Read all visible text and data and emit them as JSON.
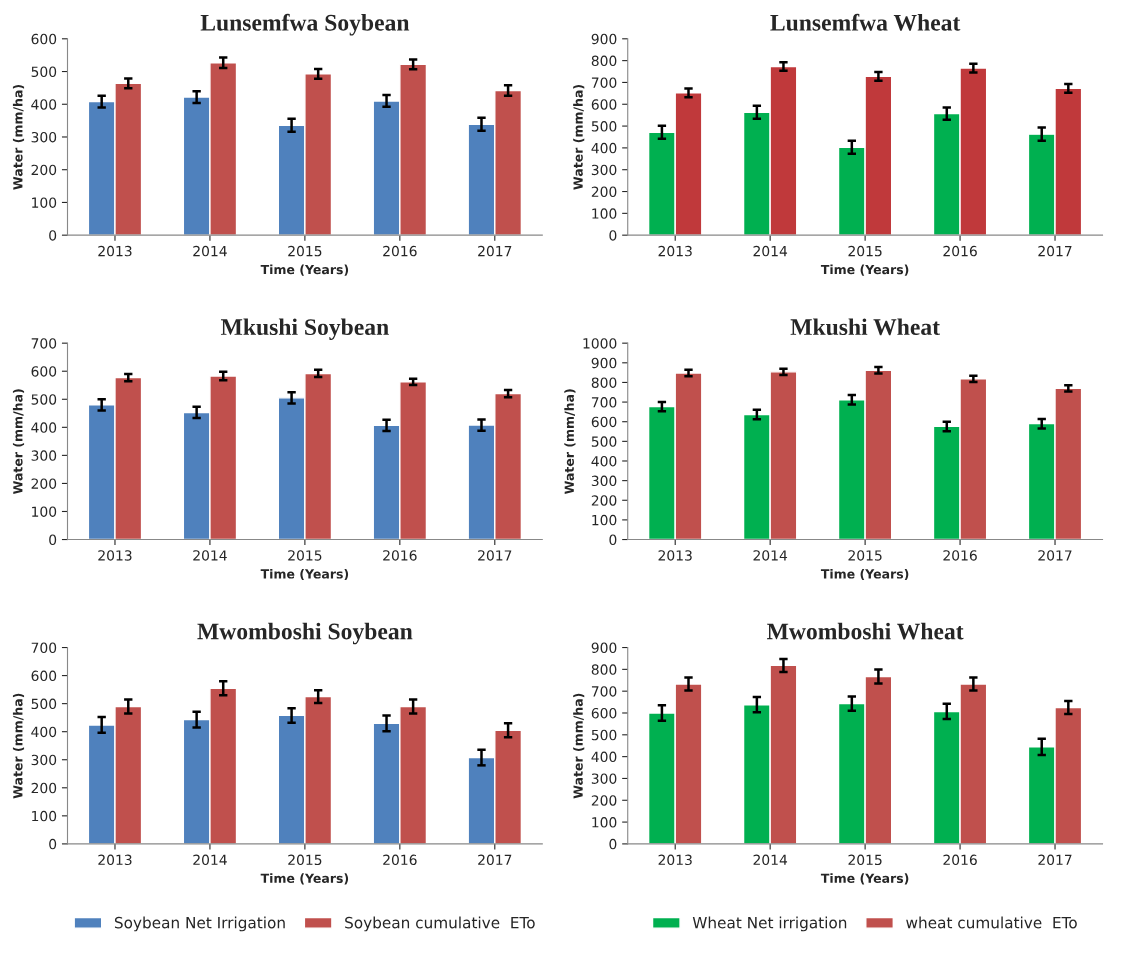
{
  "chart_data": [
    {
      "type": "bar",
      "title": "Lunsemfwa Soybean",
      "xlabel": "Time (Years)",
      "ylabel": "Water (mm/ha)",
      "categories": [
        "2013",
        "2014",
        "2015",
        "2016",
        "2017"
      ],
      "ylim": [
        0,
        600
      ],
      "yticks": [
        0,
        100,
        200,
        300,
        400,
        500,
        600
      ],
      "grid": false,
      "legend": false,
      "series": [
        {
          "color": "#4f81bd",
          "values": [
            408,
            422,
            336,
            410,
            339
          ],
          "errors": [
            18,
            18,
            20,
            18,
            20
          ]
        },
        {
          "color": "#c0504d",
          "values": [
            464,
            527,
            493,
            522,
            442
          ],
          "errors": [
            15,
            16,
            15,
            15,
            16
          ]
        }
      ]
    },
    {
      "type": "bar",
      "title": "Lunsemfwa Wheat",
      "xlabel": "Time (Years)",
      "ylabel": "Water (mm/ha)",
      "categories": [
        "2013",
        "2014",
        "2015",
        "2016",
        "2017"
      ],
      "ylim": [
        0,
        900
      ],
      "yticks": [
        0,
        100,
        200,
        300,
        400,
        500,
        600,
        700,
        800,
        900
      ],
      "grid": false,
      "legend": false,
      "series": [
        {
          "color": "#00b050",
          "values": [
            472,
            563,
            403,
            557,
            463
          ],
          "errors": [
            30,
            30,
            30,
            28,
            30
          ]
        },
        {
          "color": "#c0393b",
          "values": [
            652,
            773,
            728,
            766,
            673
          ],
          "errors": [
            20,
            20,
            20,
            20,
            20
          ]
        }
      ]
    },
    {
      "type": "bar",
      "title": "Mkushi Soybean",
      "xlabel": "Time (Years)",
      "ylabel": "Water (mm/ha)",
      "categories": [
        "2013",
        "2014",
        "2015",
        "2016",
        "2017"
      ],
      "ylim": [
        0,
        700
      ],
      "yticks": [
        0,
        100,
        200,
        300,
        400,
        500,
        600,
        700
      ],
      "grid": false,
      "legend": false,
      "series": [
        {
          "color": "#4f81bd",
          "values": [
            480,
            453,
            505,
            407,
            408
          ],
          "errors": [
            20,
            20,
            20,
            20,
            20
          ]
        },
        {
          "color": "#c0504d",
          "values": [
            577,
            583,
            592,
            562,
            520
          ],
          "errors": [
            13,
            15,
            13,
            11,
            13
          ]
        }
      ]
    },
    {
      "type": "bar",
      "title": "Mkushi Wheat",
      "xlabel": "Time (Years)",
      "ylabel": "Water (mm/ha)",
      "categories": [
        "2013",
        "2014",
        "2015",
        "2016",
        "2017"
      ],
      "ylim": [
        0,
        1000
      ],
      "yticks": [
        0,
        100,
        200,
        300,
        400,
        500,
        600,
        700,
        800,
        900,
        1000
      ],
      "grid": false,
      "legend": false,
      "series": [
        {
          "color": "#00b050",
          "values": [
            677,
            637,
            712,
            576,
            590
          ],
          "errors": [
            24,
            24,
            24,
            24,
            24
          ]
        },
        {
          "color": "#c0504d",
          "values": [
            848,
            854,
            862,
            818,
            770
          ],
          "errors": [
            16,
            16,
            16,
            16,
            16
          ]
        }
      ]
    },
    {
      "type": "bar",
      "title": "Mwomboshi Soybean",
      "xlabel": "Time (Years)",
      "ylabel": "Water (mm/ha)",
      "categories": [
        "2013",
        "2014",
        "2015",
        "2016",
        "2017"
      ],
      "ylim": [
        0,
        700
      ],
      "yticks": [
        0,
        100,
        200,
        300,
        400,
        500,
        600,
        700
      ],
      "grid": false,
      "legend": "bottom",
      "series": [
        {
          "name": "Soybean Net Irrigation",
          "color": "#4f81bd",
          "values": [
            424,
            443,
            458,
            430,
            308
          ],
          "errors": [
            28,
            28,
            26,
            28,
            28
          ]
        },
        {
          "name": "Soybean cumulative  ETo",
          "color": "#c0504d",
          "values": [
            490,
            555,
            525,
            490,
            405
          ],
          "errors": [
            25,
            25,
            23,
            25,
            25
          ]
        }
      ]
    },
    {
      "type": "bar",
      "title": "Mwomboshi Wheat",
      "xlabel": "Time (Years)",
      "ylabel": "Water (mm/ha)",
      "categories": [
        "2013",
        "2014",
        "2015",
        "2016",
        "2017"
      ],
      "ylim": [
        0,
        900
      ],
      "yticks": [
        0,
        100,
        200,
        300,
        400,
        500,
        600,
        700,
        800,
        900
      ],
      "grid": false,
      "legend": "bottom",
      "series": [
        {
          "name": "Wheat Net irrigation",
          "color": "#00b050",
          "values": [
            600,
            638,
            643,
            607,
            445
          ],
          "errors": [
            35,
            35,
            33,
            35,
            37
          ]
        },
        {
          "name": "wheat cumulative  ETo",
          "color": "#c0504d",
          "values": [
            733,
            818,
            767,
            733,
            625
          ],
          "errors": [
            30,
            30,
            32,
            30,
            30
          ]
        }
      ]
    }
  ]
}
